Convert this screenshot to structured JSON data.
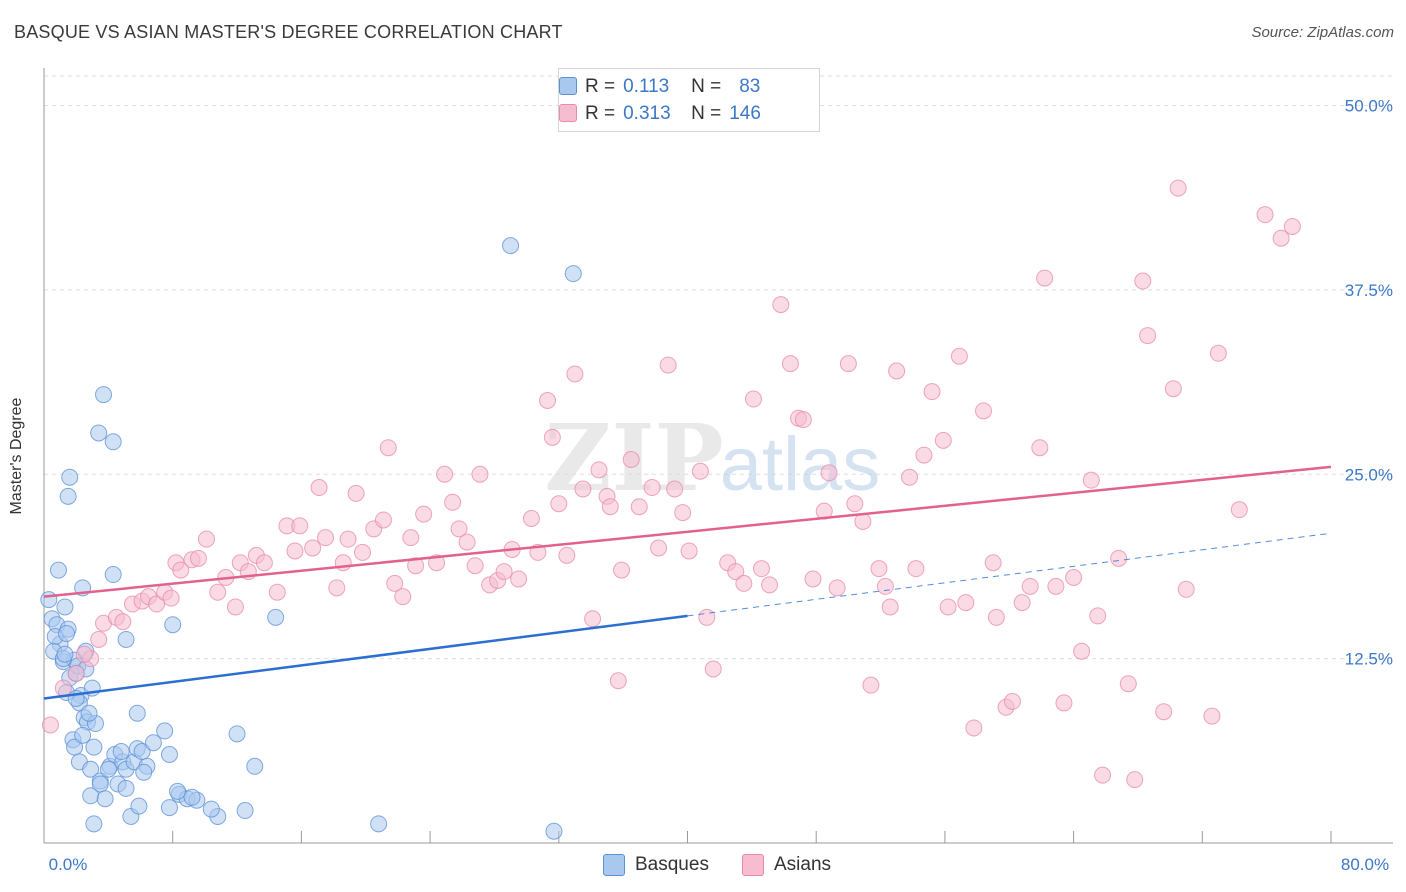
{
  "title": "BASQUE VS ASIAN MASTER'S DEGREE CORRELATION CHART",
  "source": "Source: ZipAtlas.com",
  "watermark": {
    "zip": "ZIP",
    "atlas": "atlas"
  },
  "legend": {
    "rows": [
      {
        "r_label": "R =",
        "r_value": "0.113",
        "n_label": "N =",
        "n_value": "83"
      },
      {
        "r_label": "R =",
        "r_value": "0.313",
        "n_label": "N =",
        "n_value": "146"
      }
    ]
  },
  "bottom_legend": {
    "series1": "Basques",
    "series2": "Asians"
  },
  "colors": {
    "basques_fill": "#a9c8ee",
    "basques_stroke": "#5b8fd6",
    "basques_line": "#2c6fd1",
    "asians_fill": "#f6bcd0",
    "asians_stroke": "#e88aa8",
    "asians_line": "#e0628d",
    "axis_label_blue": "#3b78c8",
    "grid": "#dddddd"
  },
  "chart_data": {
    "type": "scatter",
    "title": "BASQUE VS ASIAN MASTER'S DEGREE CORRELATION CHART",
    "xlabel": "",
    "ylabel": "Master's Degree",
    "xlim": [
      0,
      80
    ],
    "ylim": [
      0,
      52
    ],
    "x_tick_labels": [
      "0.0%",
      "80.0%"
    ],
    "y_ticks": [
      12.5,
      25.0,
      37.5,
      50.0
    ],
    "y_tick_labels": [
      "12.5%",
      "25.0%",
      "37.5%",
      "50.0%"
    ],
    "grid": true,
    "legend_position": "top-center",
    "series": [
      {
        "name": "Basques",
        "r": 0.113,
        "n": 83,
        "trend": {
          "x0": 0,
          "y0": 9.8,
          "x1": 40,
          "y1": 15.4,
          "dashed_to": 80,
          "dashed_y1": 21.0
        },
        "points": [
          [
            0.3,
            16.5
          ],
          [
            0.5,
            15.2
          ],
          [
            0.8,
            14.8
          ],
          [
            1.0,
            13.5
          ],
          [
            1.2,
            12.3
          ],
          [
            0.7,
            14.0
          ],
          [
            1.5,
            14.5
          ],
          [
            1.3,
            16.0
          ],
          [
            0.9,
            18.5
          ],
          [
            2.4,
            17.3
          ],
          [
            1.9,
            12.4
          ],
          [
            1.6,
            11.2
          ],
          [
            2.1,
            12.0
          ],
          [
            1.4,
            10.2
          ],
          [
            2.3,
            10.0
          ],
          [
            2.6,
            11.8
          ],
          [
            1.8,
            7.0
          ],
          [
            1.9,
            6.5
          ],
          [
            2.5,
            8.5
          ],
          [
            2.2,
            9.5
          ],
          [
            2.7,
            8.2
          ],
          [
            3.2,
            8.1
          ],
          [
            3.1,
            6.5
          ],
          [
            2.2,
            5.5
          ],
          [
            2.9,
            5.0
          ],
          [
            3.5,
            4.2
          ],
          [
            4.1,
            5.2
          ],
          [
            4.4,
            6.0
          ],
          [
            4.9,
            5.5
          ],
          [
            4.6,
            4.0
          ],
          [
            5.1,
            5.0
          ],
          [
            5.6,
            5.5
          ],
          [
            5.8,
            6.4
          ],
          [
            6.4,
            5.2
          ],
          [
            6.1,
            6.2
          ],
          [
            5.1,
            3.7
          ],
          [
            3.5,
            4.0
          ],
          [
            2.9,
            3.2
          ],
          [
            3.1,
            1.3
          ],
          [
            5.4,
            1.8
          ],
          [
            5.9,
            2.5
          ],
          [
            7.8,
            2.4
          ],
          [
            8.4,
            3.3
          ],
          [
            8.9,
            3.0
          ],
          [
            9.5,
            2.9
          ],
          [
            10.8,
            1.8
          ],
          [
            12.5,
            2.2
          ],
          [
            13.1,
            5.2
          ],
          [
            12.0,
            7.4
          ],
          [
            10.4,
            2.3
          ],
          [
            7.5,
            7.6
          ],
          [
            3.4,
            27.8
          ],
          [
            4.3,
            27.2
          ],
          [
            3.7,
            30.4
          ],
          [
            1.6,
            24.8
          ],
          [
            1.5,
            23.5
          ],
          [
            4.3,
            18.2
          ],
          [
            5.1,
            13.8
          ],
          [
            8.0,
            14.8
          ],
          [
            14.4,
            15.3
          ],
          [
            1.4,
            14.2
          ],
          [
            0.6,
            13.0
          ],
          [
            1.2,
            12.5
          ],
          [
            2.0,
            9.8
          ],
          [
            2.6,
            13.0
          ],
          [
            3.0,
            10.5
          ],
          [
            2.4,
            7.3
          ],
          [
            4.8,
            6.2
          ],
          [
            6.2,
            4.8
          ],
          [
            6.8,
            6.8
          ],
          [
            7.8,
            6.0
          ],
          [
            8.3,
            3.5
          ],
          [
            5.8,
            8.8
          ],
          [
            4.0,
            5.0
          ],
          [
            3.8,
            3.0
          ],
          [
            9.2,
            3.1
          ],
          [
            20.8,
            1.3
          ],
          [
            31.7,
            0.8
          ],
          [
            29.0,
            40.5
          ],
          [
            32.9,
            38.6
          ],
          [
            2.0,
            11.5
          ],
          [
            2.8,
            8.8
          ],
          [
            1.3,
            12.8
          ]
        ]
      },
      {
        "name": "Asians",
        "r": 0.313,
        "n": 146,
        "trend": {
          "x0": 0,
          "y0": 16.7,
          "x1": 80,
          "y1": 25.5
        },
        "points": [
          [
            0.4,
            8.0
          ],
          [
            1.2,
            10.5
          ],
          [
            2.0,
            11.5
          ],
          [
            2.9,
            12.5
          ],
          [
            3.4,
            13.8
          ],
          [
            3.7,
            14.9
          ],
          [
            4.5,
            15.3
          ],
          [
            4.9,
            15.0
          ],
          [
            5.5,
            16.2
          ],
          [
            6.1,
            16.4
          ],
          [
            6.5,
            16.7
          ],
          [
            7.0,
            16.2
          ],
          [
            7.5,
            17.0
          ],
          [
            7.9,
            16.6
          ],
          [
            8.2,
            19.0
          ],
          [
            8.5,
            18.5
          ],
          [
            9.2,
            19.2
          ],
          [
            9.6,
            19.3
          ],
          [
            10.1,
            20.6
          ],
          [
            10.8,
            17.0
          ],
          [
            11.3,
            18.0
          ],
          [
            11.9,
            16.0
          ],
          [
            12.2,
            19.0
          ],
          [
            12.7,
            18.4
          ],
          [
            13.2,
            19.5
          ],
          [
            13.7,
            19.0
          ],
          [
            14.5,
            17.0
          ],
          [
            15.1,
            21.5
          ],
          [
            15.6,
            19.8
          ],
          [
            15.9,
            21.5
          ],
          [
            16.7,
            20.0
          ],
          [
            17.1,
            24.1
          ],
          [
            17.5,
            20.7
          ],
          [
            18.2,
            17.3
          ],
          [
            18.6,
            19.0
          ],
          [
            18.9,
            20.6
          ],
          [
            19.4,
            23.7
          ],
          [
            19.8,
            19.7
          ],
          [
            20.5,
            21.3
          ],
          [
            21.1,
            21.9
          ],
          [
            21.4,
            26.8
          ],
          [
            21.8,
            17.6
          ],
          [
            22.3,
            16.7
          ],
          [
            22.8,
            20.7
          ],
          [
            23.1,
            18.8
          ],
          [
            23.6,
            22.3
          ],
          [
            24.4,
            19.0
          ],
          [
            24.9,
            25.0
          ],
          [
            25.4,
            23.1
          ],
          [
            25.8,
            21.3
          ],
          [
            26.3,
            20.4
          ],
          [
            26.8,
            18.8
          ],
          [
            27.1,
            25.0
          ],
          [
            27.7,
            17.5
          ],
          [
            28.2,
            17.8
          ],
          [
            28.6,
            18.4
          ],
          [
            29.1,
            19.9
          ],
          [
            29.5,
            17.9
          ],
          [
            30.3,
            22.0
          ],
          [
            30.7,
            19.7
          ],
          [
            31.3,
            30.0
          ],
          [
            31.6,
            27.5
          ],
          [
            32.0,
            23.0
          ],
          [
            32.5,
            19.5
          ],
          [
            33.0,
            31.8
          ],
          [
            33.5,
            24.0
          ],
          [
            34.1,
            15.2
          ],
          [
            34.5,
            25.3
          ],
          [
            35.0,
            23.5
          ],
          [
            35.2,
            22.8
          ],
          [
            35.7,
            11.0
          ],
          [
            35.9,
            18.5
          ],
          [
            36.5,
            26.0
          ],
          [
            37.0,
            22.8
          ],
          [
            37.8,
            24.1
          ],
          [
            38.2,
            20.0
          ],
          [
            38.8,
            32.4
          ],
          [
            39.2,
            24.0
          ],
          [
            39.7,
            22.4
          ],
          [
            40.1,
            19.8
          ],
          [
            40.8,
            25.2
          ],
          [
            41.2,
            15.3
          ],
          [
            41.6,
            11.8
          ],
          [
            42.5,
            19.0
          ],
          [
            43.0,
            18.4
          ],
          [
            43.5,
            17.6
          ],
          [
            44.1,
            30.1
          ],
          [
            44.6,
            18.6
          ],
          [
            45.1,
            17.5
          ],
          [
            45.8,
            36.5
          ],
          [
            46.4,
            32.5
          ],
          [
            46.9,
            28.8
          ],
          [
            47.2,
            28.7
          ],
          [
            47.8,
            17.9
          ],
          [
            48.5,
            22.5
          ],
          [
            48.8,
            25.1
          ],
          [
            49.3,
            17.3
          ],
          [
            50.0,
            32.5
          ],
          [
            50.4,
            23.0
          ],
          [
            50.9,
            21.8
          ],
          [
            51.4,
            10.7
          ],
          [
            51.9,
            18.6
          ],
          [
            52.3,
            17.4
          ],
          [
            52.6,
            16.0
          ],
          [
            53.0,
            32.0
          ],
          [
            53.8,
            24.8
          ],
          [
            54.2,
            18.6
          ],
          [
            54.7,
            26.3
          ],
          [
            55.2,
            30.6
          ],
          [
            55.9,
            27.3
          ],
          [
            56.2,
            16.0
          ],
          [
            56.9,
            33.0
          ],
          [
            57.3,
            16.3
          ],
          [
            57.8,
            7.8
          ],
          [
            58.4,
            29.3
          ],
          [
            59.0,
            19.0
          ],
          [
            59.2,
            15.3
          ],
          [
            59.8,
            9.2
          ],
          [
            60.2,
            9.6
          ],
          [
            60.8,
            16.3
          ],
          [
            61.3,
            17.4
          ],
          [
            61.9,
            26.8
          ],
          [
            62.2,
            38.3
          ],
          [
            62.9,
            17.4
          ],
          [
            63.4,
            9.5
          ],
          [
            64.0,
            18.0
          ],
          [
            64.5,
            13.0
          ],
          [
            65.1,
            24.6
          ],
          [
            65.5,
            15.4
          ],
          [
            65.8,
            4.6
          ],
          [
            66.8,
            19.3
          ],
          [
            67.4,
            10.8
          ],
          [
            67.8,
            4.3
          ],
          [
            68.3,
            38.1
          ],
          [
            68.6,
            34.4
          ],
          [
            69.6,
            8.9
          ],
          [
            70.2,
            30.8
          ],
          [
            70.5,
            44.4
          ],
          [
            71.0,
            17.2
          ],
          [
            72.6,
            8.6
          ],
          [
            73.0,
            33.2
          ],
          [
            74.3,
            22.6
          ],
          [
            75.9,
            42.6
          ],
          [
            76.9,
            41.0
          ],
          [
            77.6,
            41.8
          ],
          [
            2.5,
            12.8
          ]
        ]
      }
    ]
  }
}
